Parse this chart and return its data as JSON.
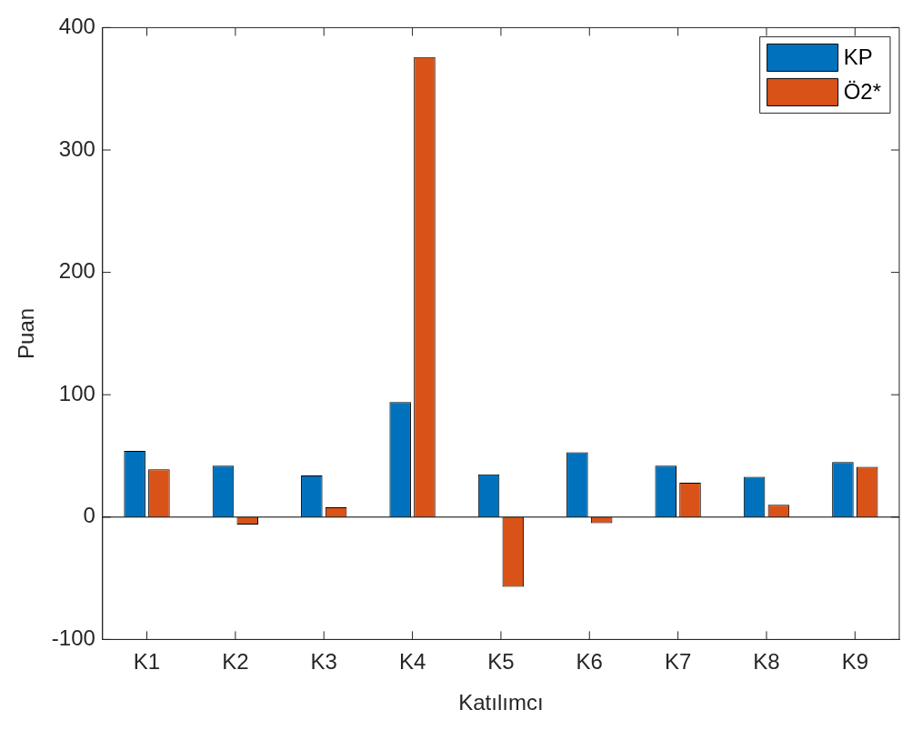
{
  "chart_data": {
    "type": "bar",
    "xlabel": "Katılımcı",
    "ylabel": "Puan",
    "categories": [
      "K1",
      "K2",
      "K3",
      "K4",
      "K5",
      "K6",
      "K7",
      "K8",
      "K9"
    ],
    "series": [
      {
        "name": "KP",
        "color": "#0072bd",
        "values": [
          54,
          42,
          34,
          94,
          35,
          53,
          42,
          33,
          45
        ]
      },
      {
        "name": "Ö2*",
        "color": "#d95319",
        "values": [
          39,
          -6,
          8,
          376,
          -57,
          -5,
          28,
          10,
          41
        ]
      }
    ],
    "ylim": [
      -100,
      400
    ],
    "yticks": [
      -100,
      0,
      100,
      200,
      300,
      400
    ],
    "ref_lines": [
      {
        "axis": "y",
        "value": 0,
        "color": "#000000"
      }
    ],
    "grid": false,
    "legend": "top right"
  }
}
